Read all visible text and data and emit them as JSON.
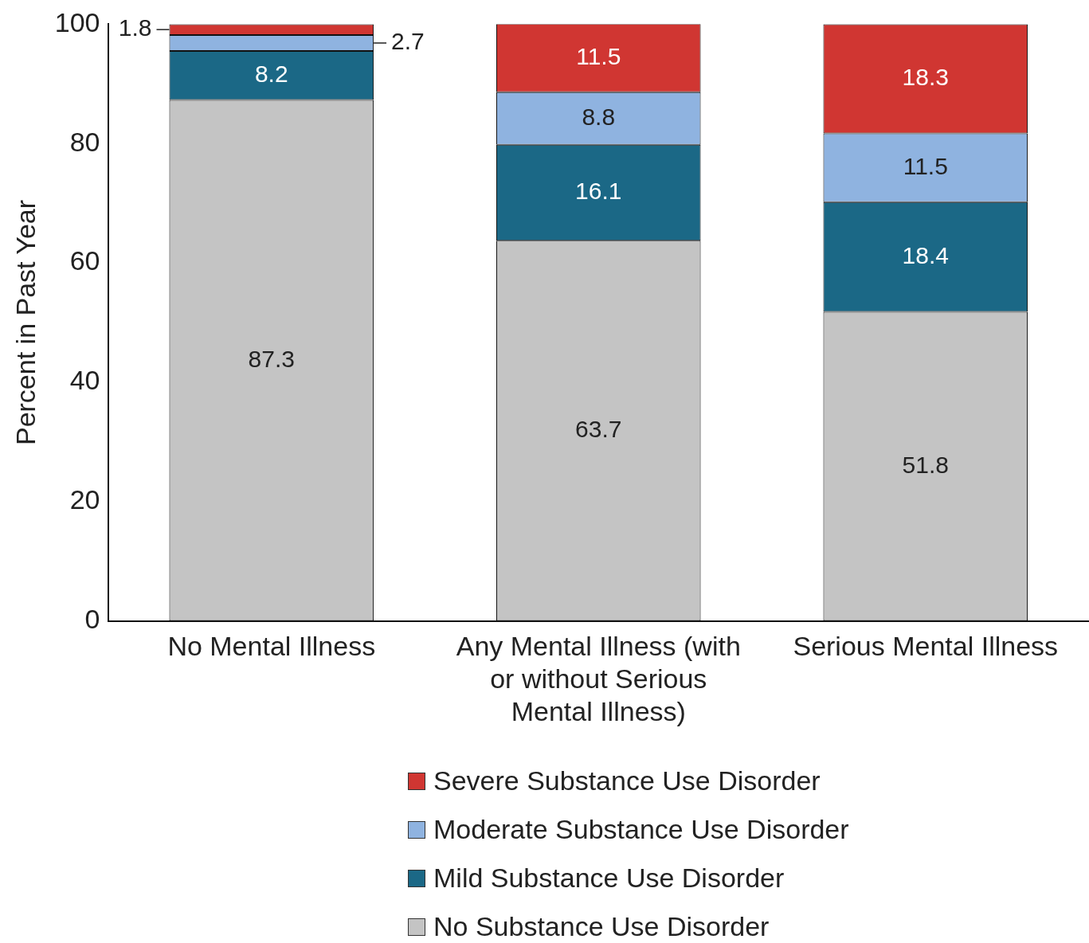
{
  "chart_data": {
    "type": "bar",
    "stacked": true,
    "ylabel": "Percent in Past Year",
    "categories": [
      "No Mental Illness",
      "Any Mental Illness (with or without Serious Mental Illness)",
      "Serious Mental Illness"
    ],
    "series": [
      {
        "name": "No Substance Use Disorder",
        "color": "#c4c4c4",
        "values": [
          87.3,
          63.7,
          51.8
        ]
      },
      {
        "name": "Mild Substance Use Disorder",
        "color": "#1b6886",
        "values": [
          8.2,
          16.1,
          18.4
        ]
      },
      {
        "name": "Moderate Substance Use Disorder",
        "color": "#8fb3e0",
        "values": [
          2.7,
          8.8,
          11.5
        ]
      },
      {
        "name": "Severe Substance Use Disorder",
        "color": "#d03632",
        "values": [
          1.8,
          11.5,
          18.3
        ]
      }
    ],
    "ylim": [
      0,
      100
    ],
    "yticks": [
      0,
      20,
      40,
      60,
      80,
      100
    ],
    "grid": false,
    "legend": "bottom",
    "data_labels": true
  }
}
